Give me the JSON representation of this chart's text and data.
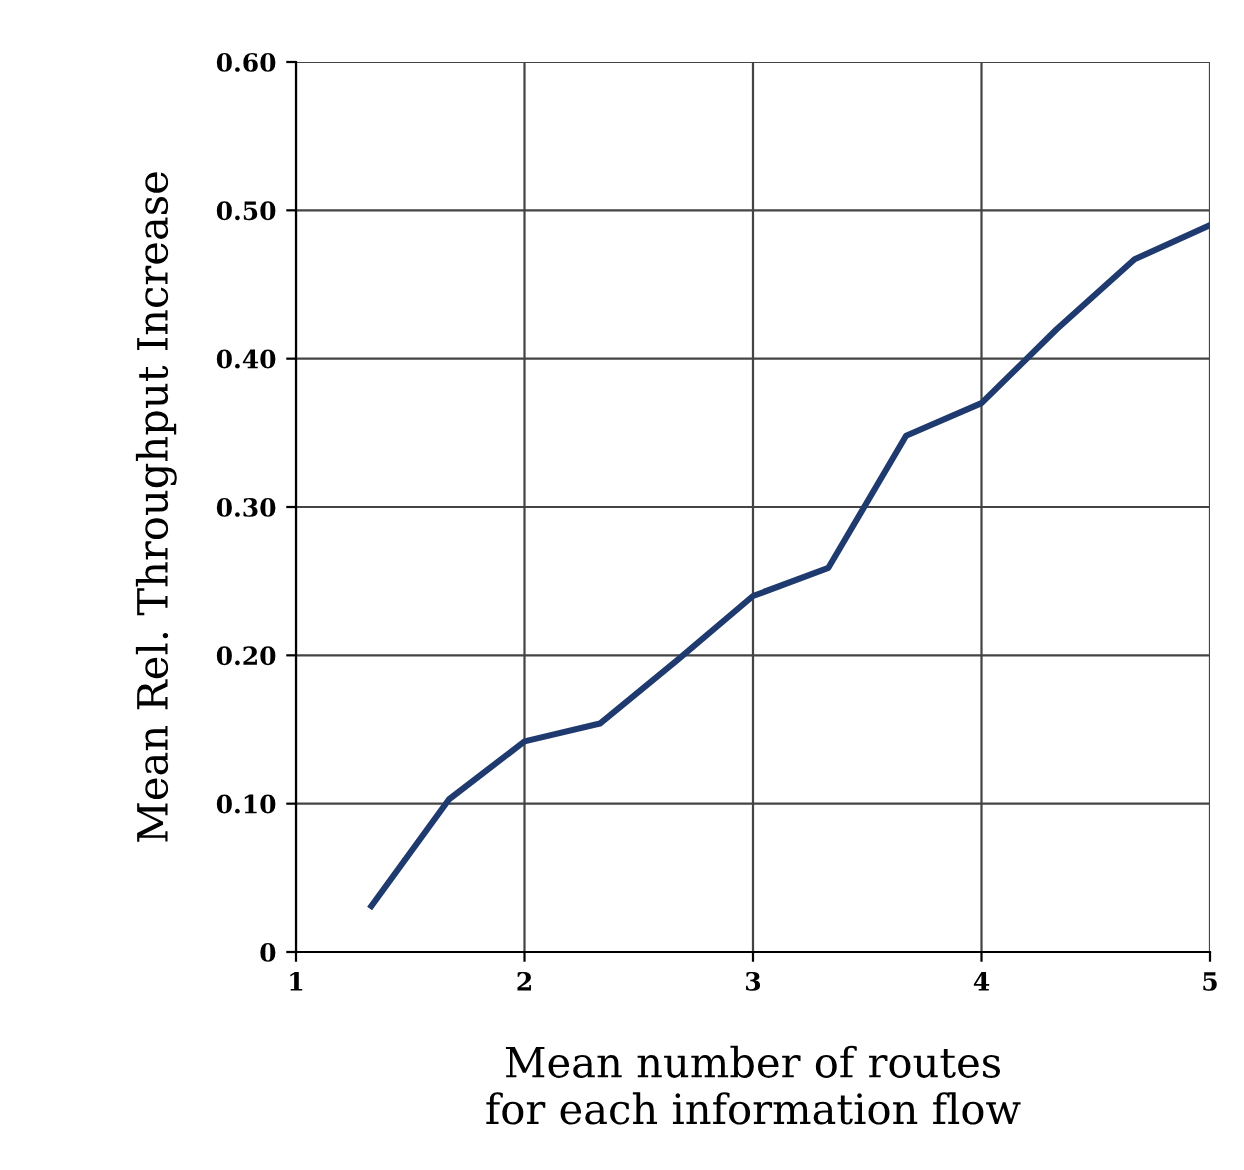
{
  "chart_data": {
    "type": "line",
    "xlabel": "Mean number of routes\nfor each information flow",
    "ylabel": "Mean Rel. Throughput Increase",
    "x": [
      1.33,
      1.67,
      2,
      2.33,
      2.67,
      3,
      3.33,
      3.67,
      4,
      4.33,
      4.67,
      5
    ],
    "series": [
      {
        "color": "#1f3a6e",
        "values": [
          0.031,
          0.103,
          0.142,
          0.154,
          0.197,
          0.24,
          0.259,
          0.348,
          0.37,
          0.42,
          0.467,
          0.49
        ]
      }
    ],
    "xlim": [
      1,
      5
    ],
    "ylim": [
      0,
      0.6
    ],
    "xticks": [
      1,
      2,
      3,
      4,
      5
    ],
    "yticks": [
      {
        "value": 0,
        "label": "0"
      },
      {
        "value": 0.1,
        "label": "0.10"
      },
      {
        "value": 0.2,
        "label": "0.20"
      },
      {
        "value": 0.3,
        "label": "0.30"
      },
      {
        "value": 0.4,
        "label": "0.40"
      },
      {
        "value": 0.5,
        "label": "0.50"
      },
      {
        "value": 0.6,
        "label": "0.60"
      }
    ],
    "grid": true,
    "legend": false,
    "marker": "none",
    "line_style": "solid"
  }
}
